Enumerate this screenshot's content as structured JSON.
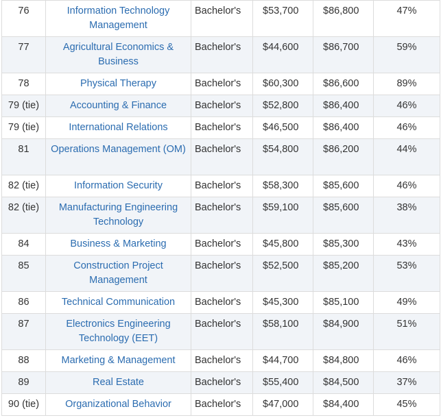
{
  "rows": [
    {
      "rank": "76",
      "major": "Information Technology Management",
      "degree": "Bachelor's",
      "early_pay": "$53,700",
      "mid_pay": "$86,800",
      "meaning": "47%"
    },
    {
      "rank": "77",
      "major": "Agricultural Economics & Business",
      "degree": "Bachelor's",
      "early_pay": "$44,600",
      "mid_pay": "$86,700",
      "meaning": "59%"
    },
    {
      "rank": "78",
      "major": "Physical Therapy",
      "degree": "Bachelor's",
      "early_pay": "$60,300",
      "mid_pay": "$86,600",
      "meaning": "89%"
    },
    {
      "rank": "79 (tie)",
      "major": "Accounting & Finance",
      "degree": "Bachelor's",
      "early_pay": "$52,800",
      "mid_pay": "$86,400",
      "meaning": "46%"
    },
    {
      "rank": "79 (tie)",
      "major": "International Relations",
      "degree": "Bachelor's",
      "early_pay": "$46,500",
      "mid_pay": "$86,400",
      "meaning": "46%"
    },
    {
      "rank": "81",
      "major": "Operations Management (OM)",
      "degree": "Bachelor's",
      "early_pay": "$54,800",
      "mid_pay": "$86,200",
      "meaning": "44%"
    },
    {
      "rank": "82 (tie)",
      "major": "Information Security",
      "degree": "Bachelor's",
      "early_pay": "$58,300",
      "mid_pay": "$85,600",
      "meaning": "46%"
    },
    {
      "rank": "82 (tie)",
      "major": "Manufacturing Engineering Technology",
      "degree": "Bachelor's",
      "early_pay": "$59,100",
      "mid_pay": "$85,600",
      "meaning": "38%"
    },
    {
      "rank": "84",
      "major": "Business & Marketing",
      "degree": "Bachelor's",
      "early_pay": "$45,800",
      "mid_pay": "$85,300",
      "meaning": "43%"
    },
    {
      "rank": "85",
      "major": "Construction Project Management",
      "degree": "Bachelor's",
      "early_pay": "$52,500",
      "mid_pay": "$85,200",
      "meaning": "53%"
    },
    {
      "rank": "86",
      "major": "Technical Communication",
      "degree": "Bachelor's",
      "early_pay": "$45,300",
      "mid_pay": "$85,100",
      "meaning": "49%"
    },
    {
      "rank": "87",
      "major": "Electronics Engineering Technology (EET)",
      "degree": "Bachelor's",
      "early_pay": "$58,100",
      "mid_pay": "$84,900",
      "meaning": "51%"
    },
    {
      "rank": "88",
      "major": "Marketing & Management",
      "degree": "Bachelor's",
      "early_pay": "$44,700",
      "mid_pay": "$84,800",
      "meaning": "46%"
    },
    {
      "rank": "89",
      "major": "Real Estate",
      "degree": "Bachelor's",
      "early_pay": "$55,400",
      "mid_pay": "$84,500",
      "meaning": "37%"
    },
    {
      "rank": "90 (tie)",
      "major": "Organizational Behavior",
      "degree": "Bachelor's",
      "early_pay": "$47,000",
      "mid_pay": "$84,400",
      "meaning": "45%"
    }
  ]
}
